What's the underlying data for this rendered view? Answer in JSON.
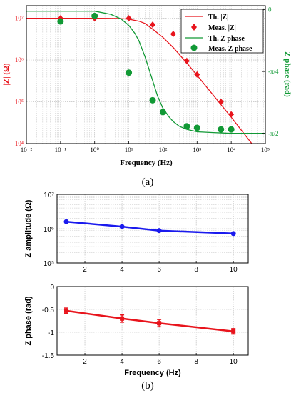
{
  "colors": {
    "red": "#e8141c",
    "green": "#119935",
    "blue": "#1a1aee",
    "grid": "#b4b4b4",
    "axis": "#000000",
    "text": "#000000"
  },
  "panel_labels": {
    "a": "(a)",
    "b": "(b)"
  },
  "chart_data": [
    {
      "type": "line",
      "xscale": "log",
      "xlim": [
        0.01,
        100000
      ],
      "xlabel": "Frequency (Hz)",
      "xticks": [
        "10⁻²",
        "10⁻¹",
        "10⁰",
        "10¹",
        "10²",
        "10³",
        "10⁴",
        "10⁵"
      ],
      "left_axis": {
        "label": "|Z| (Ω)",
        "scale": "log",
        "ylim": [
          10000,
          20000000
        ],
        "ticks": [
          "10⁴",
          "10⁵",
          "10⁶",
          "10⁷"
        ]
      },
      "right_axis": {
        "label": "Z phase (rad)",
        "ylim": [
          -1.7,
          0.05
        ],
        "ticks": [
          "0",
          "-π/4",
          "-π/2"
        ]
      },
      "grid": true,
      "legend_position": "top-right",
      "legend": [
        "Th. |Z|",
        "Meas. |Z|",
        "Th. Z phase",
        "Meas. Z phase"
      ],
      "series": [
        {
          "name": "Th. |Z|",
          "kind": "line",
          "axis": "left",
          "color": "red",
          "x": [
            0.01,
            0.1,
            1,
            5,
            10,
            20,
            30,
            50,
            100,
            200,
            500,
            1000,
            2000,
            5000,
            10000,
            40000
          ],
          "y": [
            10000000,
            10000000,
            10000000,
            9900000,
            9500000,
            8500000,
            7500000,
            5500000,
            3500000,
            2000000,
            850000,
            430000,
            215000,
            86000,
            43000,
            10000
          ]
        },
        {
          "name": "Meas. |Z|",
          "kind": "diamond",
          "axis": "left",
          "color": "red",
          "x": [
            0.1,
            1,
            10,
            50,
            200,
            500,
            1000,
            5000,
            10000
          ],
          "y": [
            10000000,
            10000000,
            10000000,
            7000000,
            4200000,
            950000,
            450000,
            100000,
            50000
          ]
        },
        {
          "name": "Th. Z phase",
          "kind": "line",
          "axis": "right",
          "color": "green",
          "x": [
            0.01,
            1,
            3,
            6,
            10,
            15,
            20,
            30,
            50,
            70,
            100,
            150,
            200,
            300,
            500,
            1000,
            3000,
            10000,
            100000
          ],
          "y": [
            -0.02,
            -0.02,
            -0.06,
            -0.12,
            -0.2,
            -0.3,
            -0.4,
            -0.6,
            -0.9,
            -1.1,
            -1.25,
            -1.36,
            -1.42,
            -1.48,
            -1.52,
            -1.55,
            -1.56,
            -1.57,
            -1.57
          ]
        },
        {
          "name": "Meas. Z phase",
          "kind": "circle",
          "axis": "right",
          "color": "green",
          "x": [
            0.1,
            1,
            10,
            50,
            100,
            500,
            1000,
            5000,
            10000
          ],
          "y": [
            -0.15,
            -0.08,
            -0.8,
            -1.15,
            -1.3,
            -1.48,
            -1.5,
            -1.52,
            -1.52
          ]
        }
      ]
    },
    {
      "type": "line",
      "xlim": [
        0.5,
        10.8
      ],
      "xlabel": "",
      "xticks": [
        "2",
        "4",
        "6",
        "8",
        "10"
      ],
      "ylabel": "Z amplitude (Ω)",
      "yscale": "log",
      "ylim": [
        100000,
        10000000
      ],
      "yticks": [
        "10⁵",
        "10⁶",
        "10⁷"
      ],
      "grid": true,
      "series": [
        {
          "color": "blue",
          "x": [
            1,
            4,
            6,
            10
          ],
          "y": [
            1600000,
            1150000,
            880000,
            720000
          ]
        }
      ]
    },
    {
      "type": "line",
      "xlim": [
        0.5,
        10.8
      ],
      "xlabel": "Frequency (Hz)",
      "xticks": [
        "2",
        "4",
        "6",
        "8",
        "10"
      ],
      "ylabel": "Z phase (rad)",
      "ylim": [
        -1.5,
        0
      ],
      "yticks": [
        "0",
        "-0.5",
        "-1",
        "-1.5"
      ],
      "grid": true,
      "series": [
        {
          "color": "red",
          "x": [
            1,
            4,
            6,
            10
          ],
          "y": [
            -0.53,
            -0.7,
            -0.8,
            -0.98
          ],
          "err": [
            0.06,
            0.08,
            0.08,
            0.06
          ]
        }
      ]
    }
  ]
}
